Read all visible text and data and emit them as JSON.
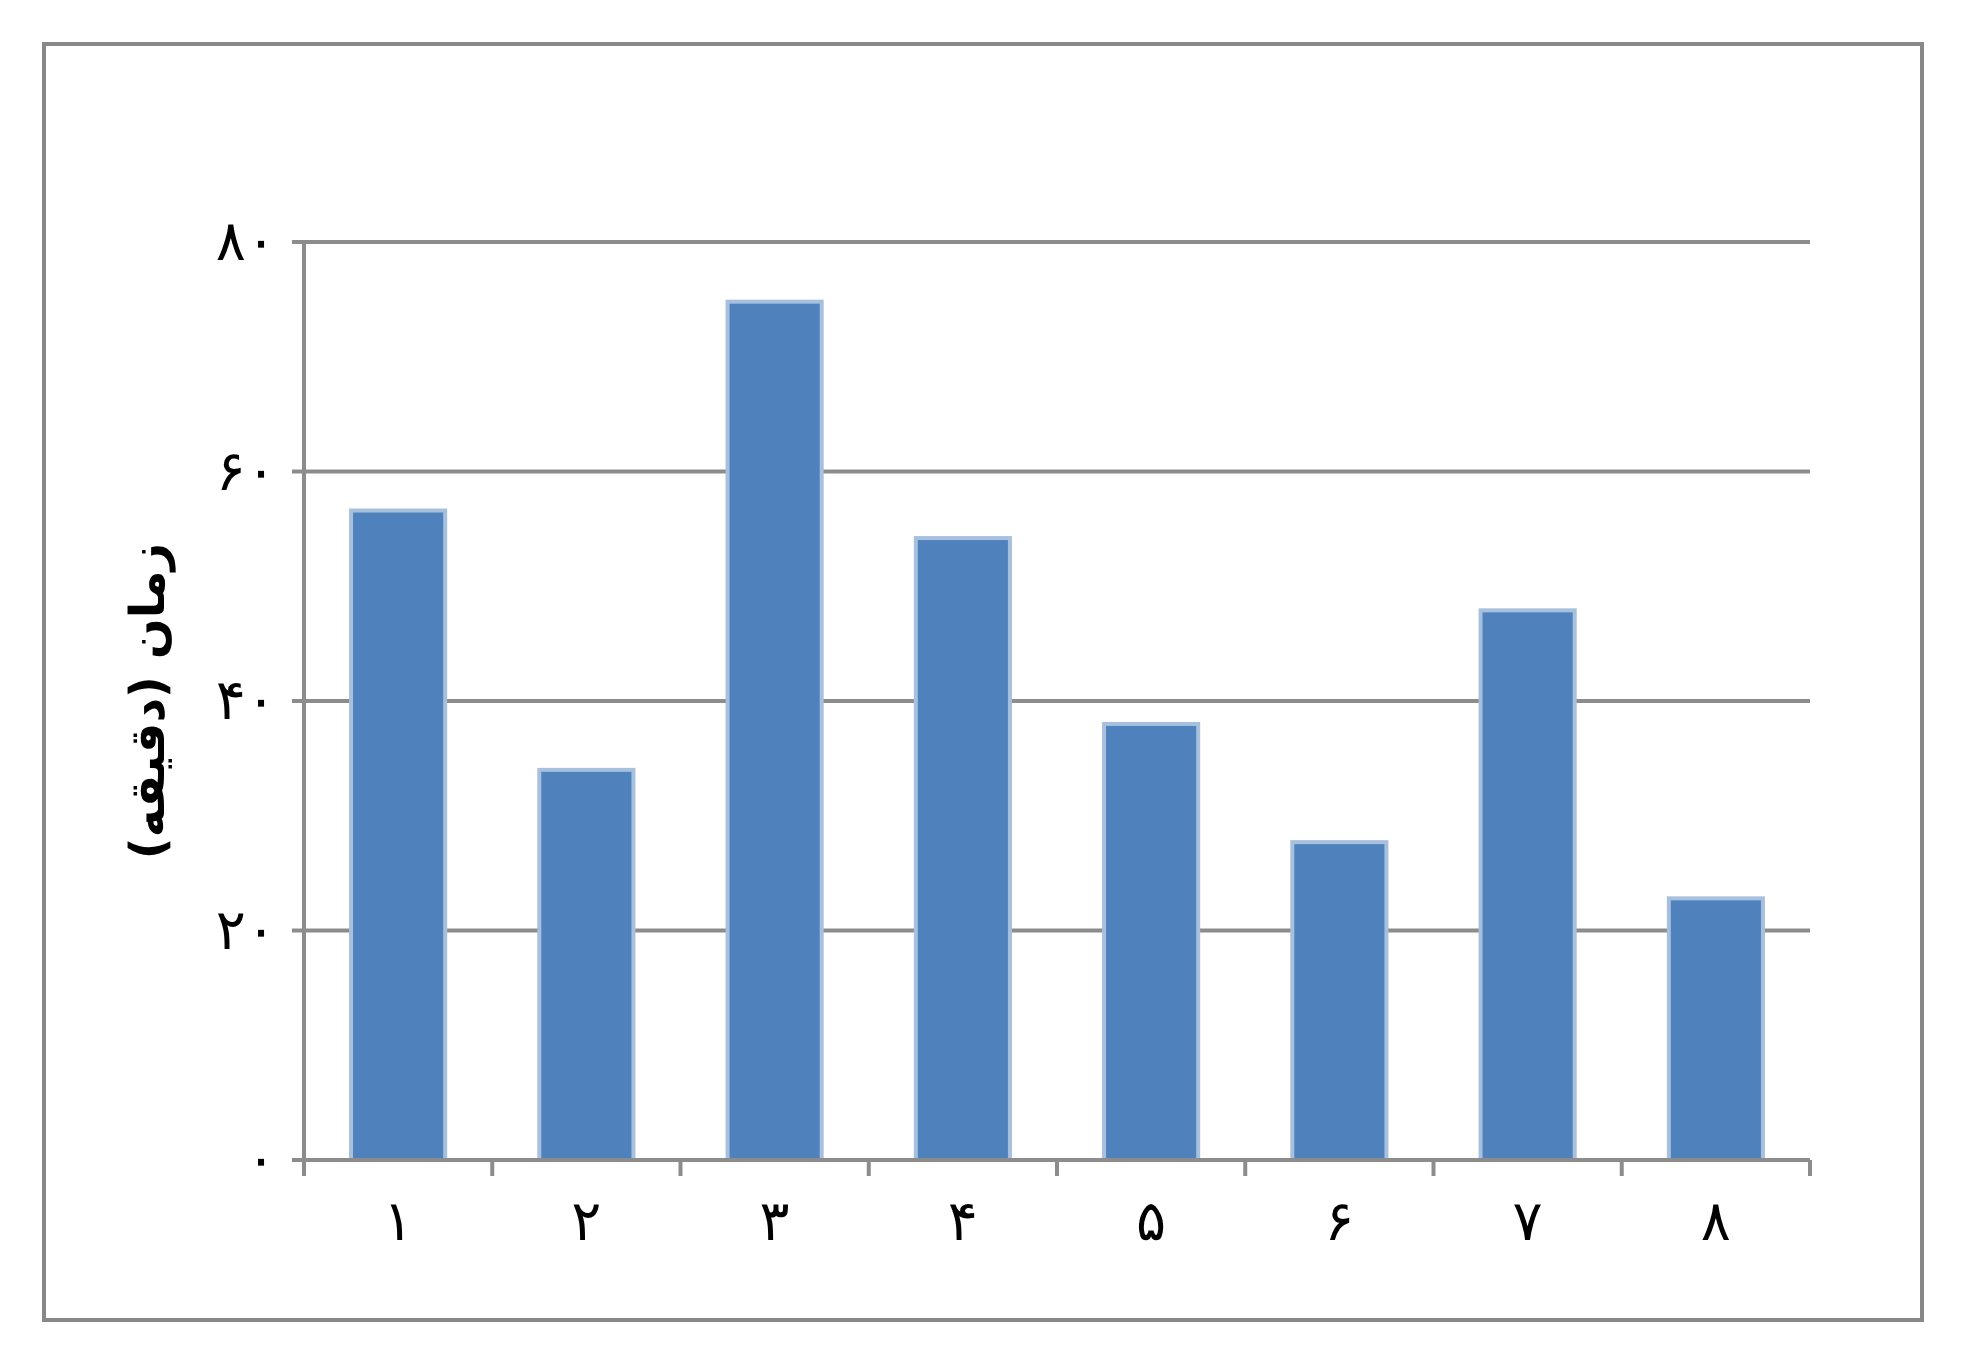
{
  "chart_data": {
    "type": "bar",
    "ylabel": "زمان (دقیقه)",
    "categories": [
      "۱",
      "۲",
      "۳",
      "۴",
      "۵",
      "۶",
      "۷",
      "۸"
    ],
    "values": [
      56.6,
      34.0,
      74.8,
      54.2,
      38.0,
      27.7,
      47.9,
      22.8
    ],
    "color": "#4f81bd",
    "ylim": [
      0,
      80
    ],
    "yticks": [
      {
        "value": 0,
        "label": "۰"
      },
      {
        "value": 20,
        "label": "۲۰"
      },
      {
        "value": 40,
        "label": "۴۰"
      },
      {
        "value": 60,
        "label": "۶۰"
      },
      {
        "value": 80,
        "label": "۸۰"
      }
    ],
    "grid": "y"
  }
}
